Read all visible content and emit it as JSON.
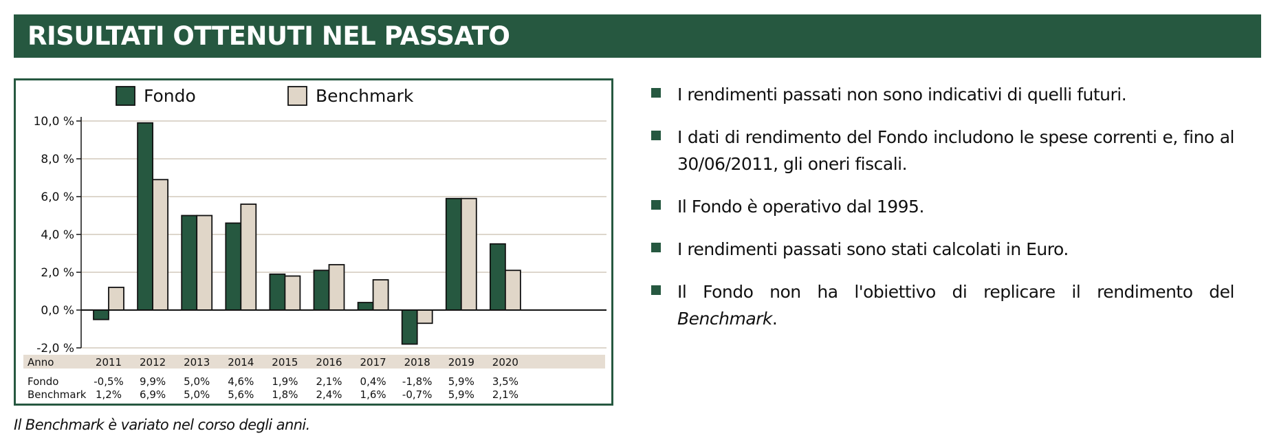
{
  "header": {
    "title": "RISULTATI OTTENUTI NEL PASSATO"
  },
  "colors": {
    "brand": "#265840",
    "fondo": "#265840",
    "benchmark": "#e0d6c8",
    "grid": "#ddd6cc",
    "row_band": "#e6ddd2"
  },
  "chart_data": {
    "type": "bar",
    "categories": [
      "2011",
      "2012",
      "2013",
      "2014",
      "2015",
      "2016",
      "2017",
      "2018",
      "2019",
      "2020"
    ],
    "series": [
      {
        "name": "Fondo",
        "values": [
          -0.5,
          9.9,
          5.0,
          4.6,
          1.9,
          2.1,
          0.4,
          -1.8,
          5.9,
          3.5
        ]
      },
      {
        "name": "Benchmark",
        "values": [
          1.2,
          6.9,
          5.0,
          5.6,
          1.8,
          2.4,
          1.6,
          -0.7,
          5.9,
          2.1
        ]
      }
    ],
    "ylim": [
      -2,
      10
    ],
    "yticks": [
      10,
      8,
      6,
      4,
      2,
      0,
      -2
    ],
    "ytick_labels": [
      "10,0 %",
      "8,0 %",
      "6,0 %",
      "4,0 %",
      "2,0 %",
      "0,0 %",
      "-2,0 %"
    ],
    "grid": true,
    "legend_position": "top",
    "table": {
      "header_label": "Anno",
      "rows": [
        {
          "label": "Fondo",
          "values": [
            "-0,5%",
            "9,9%",
            "5,0%",
            "4,6%",
            "1,9%",
            "2,1%",
            "0,4%",
            "-1,8%",
            "5,9%",
            "3,5%"
          ]
        },
        {
          "label": "Benchmark",
          "values": [
            "1,2%",
            "6,9%",
            "5,0%",
            "5,6%",
            "1,8%",
            "2,4%",
            "1,6%",
            "-0,7%",
            "5,9%",
            "2,1%"
          ]
        }
      ]
    }
  },
  "footnote": "Il Benchmark è variato nel corso degli anni.",
  "notes": [
    {
      "text": "I rendimenti passati non sono indicativi di quelli futuri."
    },
    {
      "text": "I dati di rendimento del Fondo includono le spese correnti e, fino al 30/06/2011, gli oneri fiscali."
    },
    {
      "text": "Il Fondo è operativo dal 1995."
    },
    {
      "text": "I rendimenti passati sono stati calcolati in Euro."
    },
    {
      "text": "Il Fondo non ha l'obiettivo di replicare il rendimento del ",
      "emphasis": "Benchmark",
      "suffix": "."
    }
  ]
}
